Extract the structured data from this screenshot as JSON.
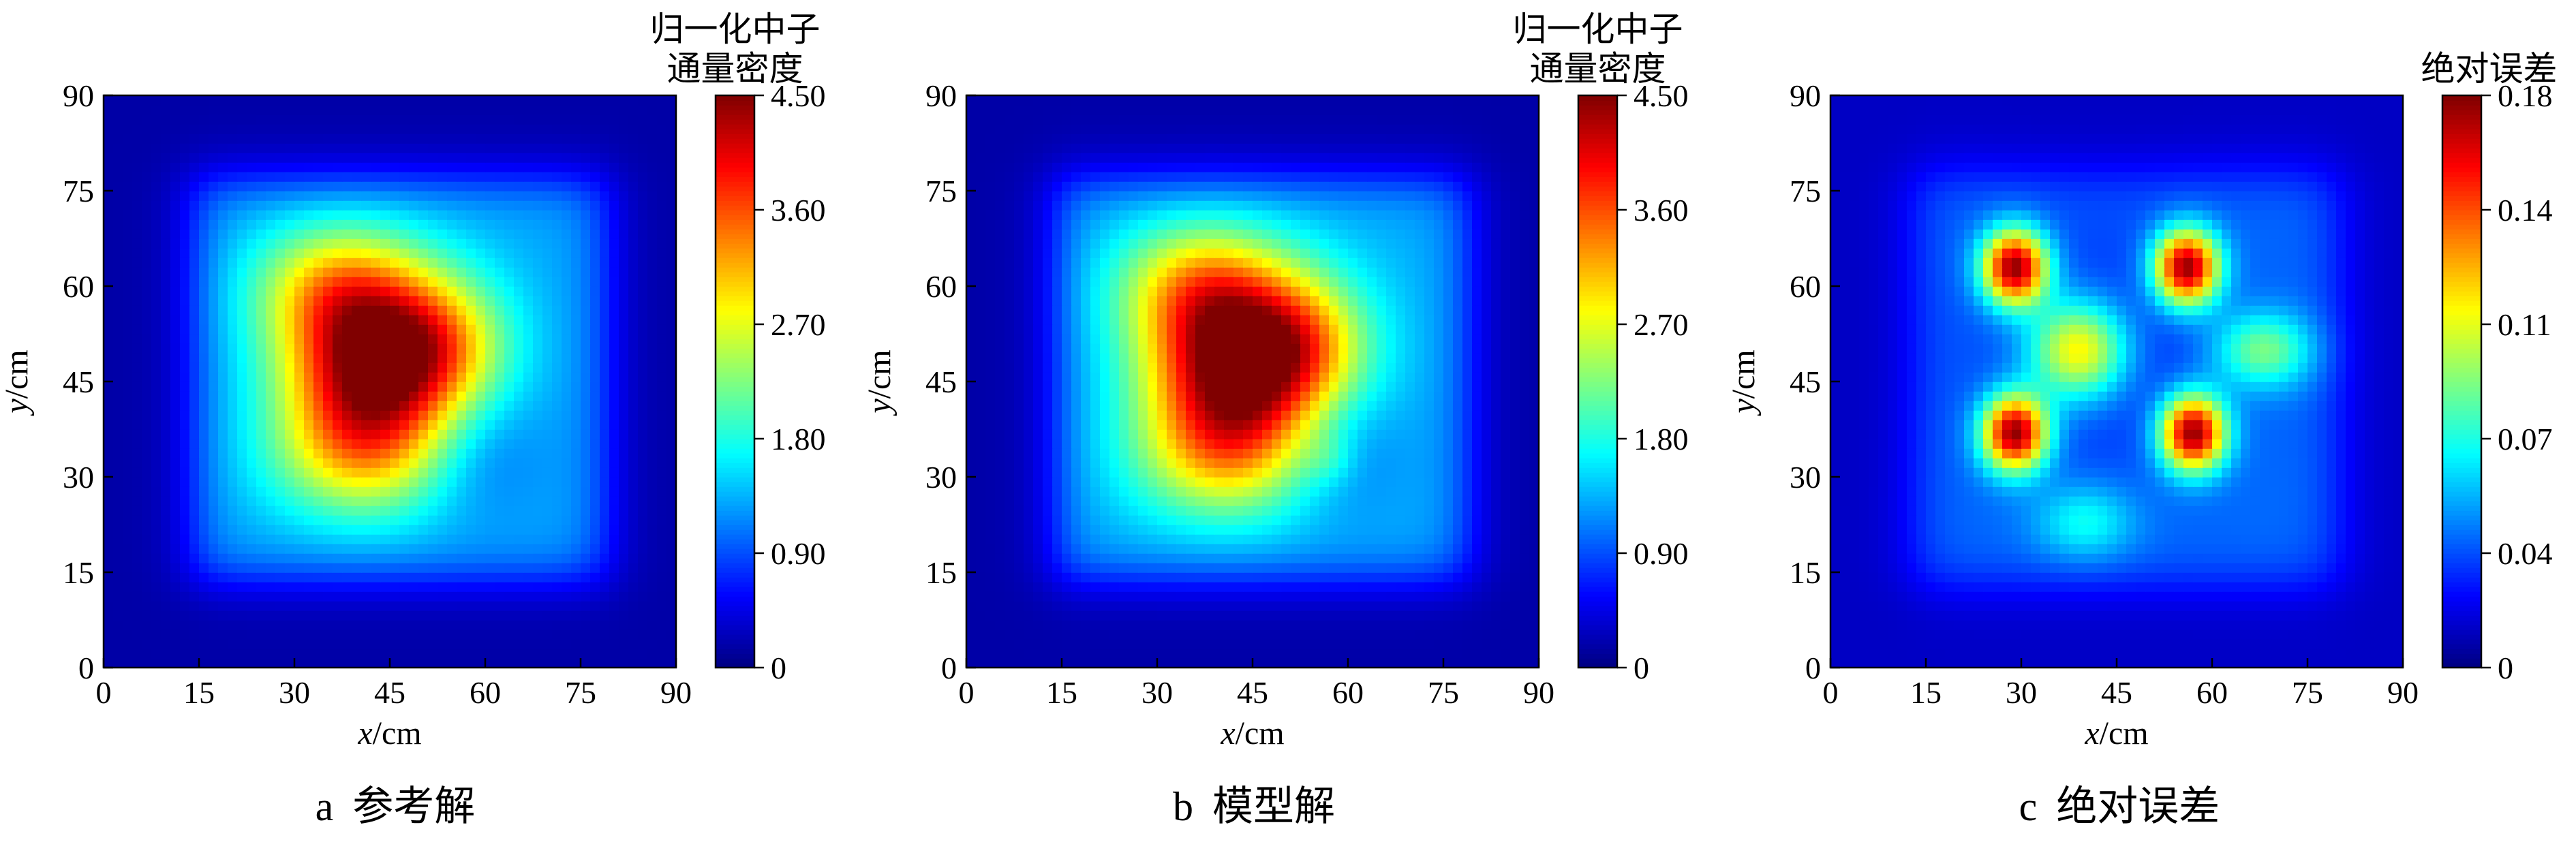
{
  "chart_data": [
    {
      "type": "heatmap",
      "panel_label": "a",
      "caption": "参考解",
      "xlabel_var": "x",
      "xlabel_unit": "/cm",
      "ylabel_var": "y",
      "ylabel_unit": "/cm",
      "xlim": [
        0,
        90
      ],
      "ylim": [
        0,
        90
      ],
      "x_ticks": [
        "0",
        "15",
        "30",
        "45",
        "60",
        "75",
        "90"
      ],
      "y_ticks": [
        "0",
        "15",
        "30",
        "45",
        "60",
        "75",
        "90"
      ],
      "colorbar_title": [
        "归一化中子",
        "通量密度"
      ],
      "colorbar_range": [
        0,
        4.5
      ],
      "colorbar_ticks": [
        "0",
        "0.90",
        "1.80",
        "2.70",
        "3.60",
        "4.50"
      ],
      "colormap": "jet",
      "peak_location": [
        42,
        47
      ],
      "peak_value": 4.4
    },
    {
      "type": "heatmap",
      "panel_label": "b",
      "caption": "模型解",
      "xlabel_var": "x",
      "xlabel_unit": "/cm",
      "ylabel_var": "y",
      "ylabel_unit": "/cm",
      "xlim": [
        0,
        90
      ],
      "ylim": [
        0,
        90
      ],
      "x_ticks": [
        "0",
        "15",
        "30",
        "45",
        "60",
        "75",
        "90"
      ],
      "y_ticks": [
        "0",
        "15",
        "30",
        "45",
        "60",
        "75",
        "90"
      ],
      "colorbar_title": [
        "归一化中子",
        "通量密度"
      ],
      "colorbar_range": [
        0,
        4.5
      ],
      "colorbar_ticks": [
        "0",
        "0.90",
        "1.80",
        "2.70",
        "3.60",
        "4.50"
      ],
      "colormap": "jet",
      "peak_location": [
        42,
        48
      ],
      "peak_value": 4.5
    },
    {
      "type": "heatmap",
      "panel_label": "c",
      "caption": "绝对误差",
      "xlabel_var": "x",
      "xlabel_unit": "/cm",
      "ylabel_var": "y",
      "ylabel_unit": "/cm",
      "xlim": [
        0,
        90
      ],
      "ylim": [
        0,
        90
      ],
      "x_ticks": [
        "0",
        "15",
        "30",
        "45",
        "60",
        "75",
        "90"
      ],
      "y_ticks": [
        "0",
        "15",
        "30",
        "45",
        "60",
        "75",
        "90"
      ],
      "colorbar_title": [
        "绝对误差"
      ],
      "colorbar_range": [
        0,
        0.18
      ],
      "colorbar_ticks": [
        "0",
        "0.04",
        "0.07",
        "0.11",
        "0.14",
        "0.18"
      ],
      "colormap": "jet",
      "hotspots": [
        {
          "x": 29,
          "y": 63,
          "value": 0.17
        },
        {
          "x": 56,
          "y": 63,
          "value": 0.17
        },
        {
          "x": 29,
          "y": 37,
          "value": 0.17
        },
        {
          "x": 57,
          "y": 37,
          "value": 0.17
        },
        {
          "x": 39,
          "y": 50,
          "value": 0.115
        },
        {
          "x": 68,
          "y": 50,
          "value": 0.08
        },
        {
          "x": 40,
          "y": 23,
          "value": 0.06
        }
      ]
    }
  ]
}
